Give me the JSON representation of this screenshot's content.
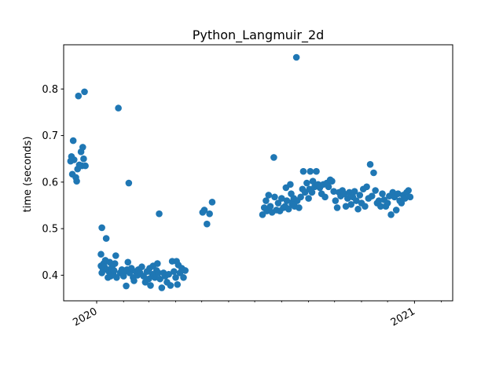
{
  "chart_data": {
    "type": "scatter",
    "title": "Python_Langmuir_2d",
    "xlabel": "",
    "ylabel": "time (seconds)",
    "x_axis": "date",
    "xlim": [
      "2019-11-24",
      "2021-02-14"
    ],
    "ylim": [
      0.345,
      0.895
    ],
    "x_major_ticks": [
      {
        "date": "2020-01-01",
        "label": "2020"
      },
      {
        "date": "2021-01-01",
        "label": "2021"
      }
    ],
    "x_minor_ticks": [
      "2020-02-01",
      "2020-03-01",
      "2020-04-01",
      "2020-05-01",
      "2020-06-01",
      "2020-07-01",
      "2020-08-01",
      "2020-09-01",
      "2020-10-01",
      "2020-11-01",
      "2020-12-01",
      "2021-02-01"
    ],
    "y_ticks": [
      0.4,
      0.5,
      0.6,
      0.7,
      0.8
    ],
    "y_tick_labels": [
      "0.4",
      "0.5",
      "0.6",
      "0.7",
      "0.8"
    ],
    "grid": false,
    "legend": "none",
    "marker_color": "#1f77b4",
    "points": [
      [
        "2019-12-02",
        0.645
      ],
      [
        "2019-12-03",
        0.655
      ],
      [
        "2019-12-04",
        0.617
      ],
      [
        "2019-12-05",
        0.689
      ],
      [
        "2019-12-06",
        0.648
      ],
      [
        "2019-12-08",
        0.61
      ],
      [
        "2019-12-09",
        0.602
      ],
      [
        "2019-12-10",
        0.628
      ],
      [
        "2019-12-11",
        0.785
      ],
      [
        "2019-12-12",
        0.637
      ],
      [
        "2019-12-14",
        0.665
      ],
      [
        "2019-12-15",
        0.635
      ],
      [
        "2019-12-16",
        0.675
      ],
      [
        "2019-12-17",
        0.65
      ],
      [
        "2019-12-18",
        0.794
      ],
      [
        "2019-12-19",
        0.635
      ],
      [
        "2020-01-07",
        0.502
      ],
      [
        "2020-01-06",
        0.445
      ],
      [
        "2020-01-06",
        0.42
      ],
      [
        "2020-01-07",
        0.405
      ],
      [
        "2020-01-08",
        0.415
      ],
      [
        "2020-01-09",
        0.425
      ],
      [
        "2020-01-10",
        0.418
      ],
      [
        "2020-01-11",
        0.432
      ],
      [
        "2020-01-12",
        0.479
      ],
      [
        "2020-01-13",
        0.412
      ],
      [
        "2020-01-14",
        0.395
      ],
      [
        "2020-01-15",
        0.408
      ],
      [
        "2020-01-16",
        0.428
      ],
      [
        "2020-01-17",
        0.398
      ],
      [
        "2020-01-18",
        0.415
      ],
      [
        "2020-01-19",
        0.42
      ],
      [
        "2020-01-20",
        0.402
      ],
      [
        "2020-01-21",
        0.41
      ],
      [
        "2020-01-22",
        0.425
      ],
      [
        "2020-01-23",
        0.442
      ],
      [
        "2020-01-24",
        0.395
      ],
      [
        "2020-01-26",
        0.759
      ],
      [
        "2020-01-28",
        0.405
      ],
      [
        "2020-01-30",
        0.412
      ],
      [
        "2020-02-01",
        0.398
      ],
      [
        "2020-02-02",
        0.408
      ],
      [
        "2020-02-04",
        0.377
      ],
      [
        "2020-02-05",
        0.412
      ],
      [
        "2020-02-06",
        0.428
      ],
      [
        "2020-02-07",
        0.598
      ],
      [
        "2020-02-08",
        0.405
      ],
      [
        "2020-02-10",
        0.415
      ],
      [
        "2020-02-12",
        0.395
      ],
      [
        "2020-02-13",
        0.388
      ],
      [
        "2020-02-15",
        0.408
      ],
      [
        "2020-02-17",
        0.4
      ],
      [
        "2020-02-18",
        0.412
      ],
      [
        "2020-02-20",
        0.405
      ],
      [
        "2020-02-22",
        0.418
      ],
      [
        "2020-02-24",
        0.398
      ],
      [
        "2020-02-26",
        0.385
      ],
      [
        "2020-02-28",
        0.408
      ],
      [
        "2020-03-01",
        0.392
      ],
      [
        "2020-03-02",
        0.415
      ],
      [
        "2020-03-03",
        0.378
      ],
      [
        "2020-03-05",
        0.402
      ],
      [
        "2020-03-06",
        0.42
      ],
      [
        "2020-03-08",
        0.395
      ],
      [
        "2020-03-10",
        0.41
      ],
      [
        "2020-03-11",
        0.425
      ],
      [
        "2020-03-12",
        0.405
      ],
      [
        "2020-03-13",
        0.532
      ],
      [
        "2020-03-14",
        0.392
      ],
      [
        "2020-03-16",
        0.373
      ],
      [
        "2020-03-18",
        0.405
      ],
      [
        "2020-03-20",
        0.398
      ],
      [
        "2020-03-22",
        0.385
      ],
      [
        "2020-03-24",
        0.402
      ],
      [
        "2020-03-26",
        0.378
      ],
      [
        "2020-03-28",
        0.43
      ],
      [
        "2020-03-30",
        0.408
      ],
      [
        "2020-04-01",
        0.395
      ],
      [
        "2020-04-02",
        0.43
      ],
      [
        "2020-04-03",
        0.38
      ],
      [
        "2020-04-04",
        0.422
      ],
      [
        "2020-04-06",
        0.405
      ],
      [
        "2020-04-08",
        0.415
      ],
      [
        "2020-04-10",
        0.395
      ],
      [
        "2020-04-12",
        0.41
      ],
      [
        "2020-05-02",
        0.535
      ],
      [
        "2020-05-04",
        0.54
      ],
      [
        "2020-05-07",
        0.51
      ],
      [
        "2020-05-10",
        0.532
      ],
      [
        "2020-05-13",
        0.557
      ],
      [
        "2020-07-10",
        0.53
      ],
      [
        "2020-07-12",
        0.545
      ],
      [
        "2020-07-14",
        0.56
      ],
      [
        "2020-07-15",
        0.538
      ],
      [
        "2020-07-17",
        0.572
      ],
      [
        "2020-07-19",
        0.548
      ],
      [
        "2020-07-21",
        0.535
      ],
      [
        "2020-07-23",
        0.653
      ],
      [
        "2020-07-24",
        0.568
      ],
      [
        "2020-07-26",
        0.54
      ],
      [
        "2020-07-28",
        0.555
      ],
      [
        "2020-07-30",
        0.538
      ],
      [
        "2020-08-01",
        0.565
      ],
      [
        "2020-08-03",
        0.545
      ],
      [
        "2020-08-05",
        0.548
      ],
      [
        "2020-08-06",
        0.588
      ],
      [
        "2020-08-07",
        0.56
      ],
      [
        "2020-08-09",
        0.542
      ],
      [
        "2020-08-11",
        0.595
      ],
      [
        "2020-08-12",
        0.575
      ],
      [
        "2020-08-13",
        0.552
      ],
      [
        "2020-08-14",
        0.558
      ],
      [
        "2020-08-15",
        0.565
      ],
      [
        "2020-08-16",
        0.548
      ],
      [
        "2020-08-18",
        0.868
      ],
      [
        "2020-08-19",
        0.56
      ],
      [
        "2020-08-21",
        0.545
      ],
      [
        "2020-08-23",
        0.568
      ],
      [
        "2020-08-25",
        0.585
      ],
      [
        "2020-08-26",
        0.623
      ],
      [
        "2020-08-28",
        0.578
      ],
      [
        "2020-08-30",
        0.598
      ],
      [
        "2020-09-01",
        0.565
      ],
      [
        "2020-09-02",
        0.585
      ],
      [
        "2020-09-03",
        0.623
      ],
      [
        "2020-09-05",
        0.578
      ],
      [
        "2020-09-06",
        0.602
      ],
      [
        "2020-09-08",
        0.59
      ],
      [
        "2020-09-10",
        0.623
      ],
      [
        "2020-09-12",
        0.595
      ],
      [
        "2020-09-14",
        0.588
      ],
      [
        "2020-09-16",
        0.575
      ],
      [
        "2020-09-18",
        0.595
      ],
      [
        "2020-09-20",
        0.568
      ],
      [
        "2020-09-22",
        0.598
      ],
      [
        "2020-09-24",
        0.59
      ],
      [
        "2020-09-26",
        0.605
      ],
      [
        "2020-09-28",
        0.602
      ],
      [
        "2020-09-30",
        0.58
      ],
      [
        "2020-10-02",
        0.56
      ],
      [
        "2020-10-04",
        0.545
      ],
      [
        "2020-10-06",
        0.578
      ],
      [
        "2020-10-08",
        0.57
      ],
      [
        "2020-10-10",
        0.582
      ],
      [
        "2020-10-12",
        0.575
      ],
      [
        "2020-10-14",
        0.548
      ],
      [
        "2020-10-16",
        0.565
      ],
      [
        "2020-10-18",
        0.578
      ],
      [
        "2020-10-20",
        0.552
      ],
      [
        "2020-10-22",
        0.568
      ],
      [
        "2020-10-24",
        0.58
      ],
      [
        "2020-10-26",
        0.56
      ],
      [
        "2020-10-28",
        0.542
      ],
      [
        "2020-10-30",
        0.572
      ],
      [
        "2020-11-01",
        0.555
      ],
      [
        "2020-11-03",
        0.585
      ],
      [
        "2020-11-05",
        0.548
      ],
      [
        "2020-11-07",
        0.59
      ],
      [
        "2020-11-09",
        0.565
      ],
      [
        "2020-11-11",
        0.638
      ],
      [
        "2020-11-13",
        0.57
      ],
      [
        "2020-11-15",
        0.62
      ],
      [
        "2020-11-17",
        0.582
      ],
      [
        "2020-11-19",
        0.555
      ],
      [
        "2020-11-21",
        0.56
      ],
      [
        "2020-11-23",
        0.548
      ],
      [
        "2020-11-25",
        0.575
      ],
      [
        "2020-11-27",
        0.562
      ],
      [
        "2020-11-29",
        0.548
      ],
      [
        "2020-12-01",
        0.555
      ],
      [
        "2020-12-03",
        0.57
      ],
      [
        "2020-12-05",
        0.53
      ],
      [
        "2020-12-07",
        0.578
      ],
      [
        "2020-12-09",
        0.568
      ],
      [
        "2020-12-11",
        0.54
      ],
      [
        "2020-12-13",
        0.575
      ],
      [
        "2020-12-15",
        0.56
      ],
      [
        "2020-12-17",
        0.555
      ],
      [
        "2020-12-19",
        0.572
      ],
      [
        "2020-12-21",
        0.565
      ],
      [
        "2020-12-23",
        0.578
      ],
      [
        "2020-12-25",
        0.582
      ],
      [
        "2020-12-27",
        0.568
      ]
    ]
  }
}
